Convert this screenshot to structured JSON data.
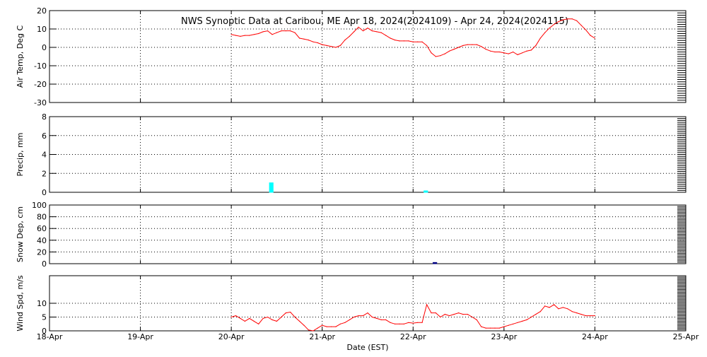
{
  "chart_data": {
    "title": "NWS Synoptic Data at Caribou, ME   Apr 18, 2024(2024109) - Apr 24, 2024(2024115)",
    "xlabel": "Date (EST)",
    "x_ticks": [
      "18-Apr",
      "19-Apr",
      "20-Apr",
      "21-Apr",
      "22-Apr",
      "23-Apr",
      "24-Apr",
      "25-Apr"
    ],
    "xlim": [
      0,
      7
    ],
    "colors": {
      "temp": "#ff0000",
      "precip": "#00ffff",
      "snow": "#000080",
      "wind": "#ff0000",
      "axes": "#000000"
    },
    "panels": [
      {
        "name": "temp",
        "type": "line",
        "ylabel": "Air Temp, Deg C",
        "ylim": [
          -30,
          20
        ],
        "y_ticks": [
          20,
          10,
          0,
          -10,
          -20,
          -30
        ],
        "series": [
          {
            "values": [
              [
                2.0,
                7
              ],
              [
                2.05,
                6.5
              ],
              [
                2.1,
                6
              ],
              [
                2.15,
                6.5
              ],
              [
                2.2,
                6.5
              ],
              [
                2.25,
                7
              ],
              [
                2.3,
                7.5
              ],
              [
                2.35,
                8.5
              ],
              [
                2.4,
                9
              ],
              [
                2.45,
                7
              ],
              [
                2.5,
                8
              ],
              [
                2.55,
                9
              ],
              [
                2.6,
                9
              ],
              [
                2.65,
                9
              ],
              [
                2.7,
                8
              ],
              [
                2.75,
                5
              ],
              [
                2.8,
                4.5
              ],
              [
                2.85,
                4
              ],
              [
                2.9,
                3
              ],
              [
                2.95,
                2.5
              ],
              [
                3.0,
                1.5
              ],
              [
                3.05,
                1
              ],
              [
                3.1,
                0.5
              ],
              [
                3.15,
                0
              ],
              [
                3.2,
                1
              ],
              [
                3.25,
                4
              ],
              [
                3.3,
                6
              ],
              [
                3.35,
                8.5
              ],
              [
                3.4,
                11
              ],
              [
                3.45,
                9
              ],
              [
                3.5,
                10.5
              ],
              [
                3.55,
                9
              ],
              [
                3.6,
                8.5
              ],
              [
                3.65,
                8
              ],
              [
                3.7,
                6.5
              ],
              [
                3.75,
                5
              ],
              [
                3.8,
                4
              ],
              [
                3.85,
                3.5
              ],
              [
                3.9,
                3.5
              ],
              [
                3.95,
                3.5
              ],
              [
                4.0,
                3
              ],
              [
                4.05,
                3
              ],
              [
                4.1,
                3
              ],
              [
                4.15,
                1
              ],
              [
                4.2,
                -3
              ],
              [
                4.25,
                -5
              ],
              [
                4.3,
                -4.5
              ],
              [
                4.35,
                -3.5
              ],
              [
                4.4,
                -2
              ],
              [
                4.45,
                -1
              ],
              [
                4.5,
                0
              ],
              [
                4.55,
                1
              ],
              [
                4.6,
                1.5
              ],
              [
                4.65,
                1.5
              ],
              [
                4.7,
                1.5
              ],
              [
                4.75,
                0.5
              ],
              [
                4.8,
                -1
              ],
              [
                4.85,
                -2
              ],
              [
                4.9,
                -2.5
              ],
              [
                4.95,
                -2.5
              ],
              [
                5.0,
                -3
              ],
              [
                5.05,
                -3.5
              ],
              [
                5.1,
                -2.5
              ],
              [
                5.15,
                -4
              ],
              [
                5.2,
                -3
              ],
              [
                5.25,
                -2
              ],
              [
                5.3,
                -1.5
              ],
              [
                5.35,
                1
              ],
              [
                5.4,
                5
              ],
              [
                5.45,
                8
              ],
              [
                5.5,
                10.5
              ],
              [
                5.55,
                12.5
              ],
              [
                5.6,
                14
              ],
              [
                5.65,
                15
              ],
              [
                5.7,
                15.5
              ],
              [
                5.75,
                15.5
              ],
              [
                5.8,
                14.5
              ],
              [
                5.85,
                12
              ],
              [
                5.9,
                9.5
              ],
              [
                5.95,
                6.5
              ],
              [
                6.0,
                5
              ]
            ]
          }
        ]
      },
      {
        "name": "precip",
        "type": "bar",
        "ylabel": "Precip, mm",
        "ylim": [
          0,
          8
        ],
        "y_ticks": [
          8,
          6,
          4,
          2,
          0
        ],
        "bars": [
          {
            "x": 2.42,
            "width": 0.04,
            "value": 1.0
          },
          {
            "x": 4.12,
            "width": 0.04,
            "value": 0.15
          }
        ]
      },
      {
        "name": "snow",
        "type": "bar",
        "ylabel": "Snow Dep, cm",
        "ylim": [
          0,
          100
        ],
        "y_ticks": [
          100,
          80,
          60,
          40,
          20,
          0
        ],
        "bars": [
          {
            "x": 4.22,
            "width": 0.04,
            "value": 2
          }
        ]
      },
      {
        "name": "wind",
        "type": "line",
        "ylabel": "Wind Spd, m/s",
        "ylim": [
          0,
          20
        ],
        "y_ticks": [
          10,
          5,
          0
        ],
        "series": [
          {
            "values": [
              [
                2.0,
                5
              ],
              [
                2.05,
                5.5
              ],
              [
                2.1,
                4.5
              ],
              [
                2.15,
                3.5
              ],
              [
                2.2,
                4.5
              ],
              [
                2.25,
                3.5
              ],
              [
                2.3,
                2.5
              ],
              [
                2.35,
                4.5
              ],
              [
                2.4,
                5
              ],
              [
                2.45,
                4
              ],
              [
                2.5,
                3.5
              ],
              [
                2.55,
                5
              ],
              [
                2.6,
                6.5
              ],
              [
                2.65,
                6.8
              ],
              [
                2.7,
                5
              ],
              [
                2.75,
                3.5
              ],
              [
                2.8,
                2
              ],
              [
                2.85,
                0.3
              ],
              [
                2.9,
                0
              ],
              [
                2.95,
                1
              ],
              [
                3.0,
                2
              ],
              [
                3.05,
                1.5
              ],
              [
                3.1,
                1.5
              ],
              [
                3.15,
                1.5
              ],
              [
                3.2,
                2.5
              ],
              [
                3.25,
                3
              ],
              [
                3.3,
                4
              ],
              [
                3.35,
                5
              ],
              [
                3.4,
                5.5
              ],
              [
                3.45,
                5.5
              ],
              [
                3.5,
                6.5
              ],
              [
                3.55,
                5
              ],
              [
                3.6,
                4.5
              ],
              [
                3.65,
                4
              ],
              [
                3.7,
                4
              ],
              [
                3.75,
                3
              ],
              [
                3.8,
                2.5
              ],
              [
                3.85,
                2.5
              ],
              [
                3.9,
                2.5
              ],
              [
                3.95,
                3
              ],
              [
                4.0,
                2.8
              ],
              [
                4.05,
                3
              ],
              [
                4.1,
                3
              ],
              [
                4.15,
                9.5
              ],
              [
                4.2,
                6.5
              ],
              [
                4.25,
                6.5
              ],
              [
                4.3,
                5
              ],
              [
                4.35,
                6
              ],
              [
                4.4,
                5.5
              ],
              [
                4.45,
                6
              ],
              [
                4.5,
                6.5
              ],
              [
                4.55,
                6
              ],
              [
                4.6,
                6
              ],
              [
                4.65,
                5
              ],
              [
                4.7,
                4
              ],
              [
                4.75,
                1.5
              ],
              [
                4.8,
                1
              ],
              [
                4.85,
                1
              ],
              [
                4.9,
                1
              ],
              [
                4.95,
                1
              ],
              [
                5.0,
                1.5
              ],
              [
                5.05,
                2
              ],
              [
                5.1,
                2.5
              ],
              [
                5.15,
                3
              ],
              [
                5.2,
                3.5
              ],
              [
                5.25,
                4
              ],
              [
                5.3,
                5
              ],
              [
                5.35,
                6
              ],
              [
                5.4,
                7
              ],
              [
                5.45,
                9
              ],
              [
                5.5,
                8.5
              ],
              [
                5.55,
                9.5
              ],
              [
                5.6,
                8
              ],
              [
                5.65,
                8.5
              ],
              [
                5.7,
                8
              ],
              [
                5.75,
                7
              ],
              [
                5.8,
                6.5
              ],
              [
                5.85,
                6
              ],
              [
                5.9,
                5.5
              ],
              [
                5.95,
                5.5
              ],
              [
                6.0,
                5.5
              ]
            ]
          }
        ]
      }
    ]
  }
}
